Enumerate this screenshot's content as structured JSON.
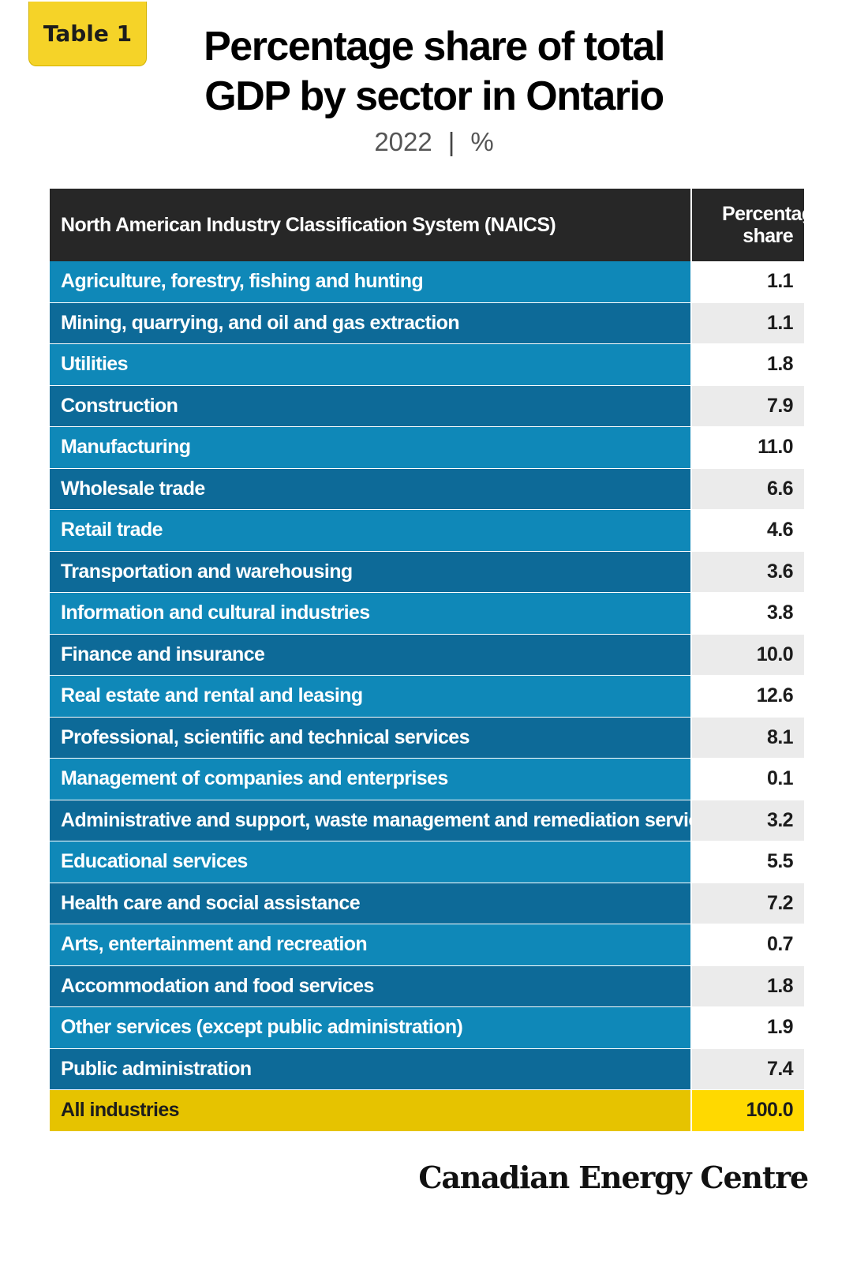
{
  "badge": "Table 1",
  "title_line1": "Percentage share of total",
  "title_line2": "GDP by sector in Ontario",
  "subtitle_year": "2022",
  "subtitle_separator": "|",
  "subtitle_unit": "%",
  "brand": "Canadian Energy Centre",
  "chart_data": {
    "type": "table",
    "columns": [
      "North American Industry Classification System (NAICS)",
      "Percentage share"
    ],
    "rows": [
      {
        "sector": "Agriculture, forestry, fishing and hunting",
        "value": "1.1"
      },
      {
        "sector": "Mining, quarrying, and oil and gas extraction",
        "value": "1.1"
      },
      {
        "sector": "Utilities",
        "value": "1.8"
      },
      {
        "sector": "Construction",
        "value": "7.9"
      },
      {
        "sector": "Manufacturing",
        "value": "11.0"
      },
      {
        "sector": "Wholesale trade",
        "value": "6.6"
      },
      {
        "sector": "Retail trade",
        "value": "4.6"
      },
      {
        "sector": "Transportation and warehousing",
        "value": "3.6"
      },
      {
        "sector": "Information and cultural industries",
        "value": "3.8"
      },
      {
        "sector": "Finance and insurance",
        "value": "10.0"
      },
      {
        "sector": "Real estate and rental and leasing",
        "value": "12.6"
      },
      {
        "sector": "Professional, scientific and technical services",
        "value": "8.1"
      },
      {
        "sector": "Management of companies and enterprises",
        "value": "0.1"
      },
      {
        "sector": "Administrative and support, waste management and remediation services",
        "value": "3.2"
      },
      {
        "sector": "Educational services",
        "value": "5.5"
      },
      {
        "sector": "Health care and social assistance",
        "value": "7.2"
      },
      {
        "sector": "Arts, entertainment and recreation",
        "value": "0.7"
      },
      {
        "sector": "Accommodation and food services",
        "value": "1.8"
      },
      {
        "sector": "Other services (except public administration)",
        "value": "1.9"
      },
      {
        "sector": "Public administration",
        "value": "7.4"
      }
    ],
    "total": {
      "sector": "All industries",
      "value": "100.0"
    }
  }
}
